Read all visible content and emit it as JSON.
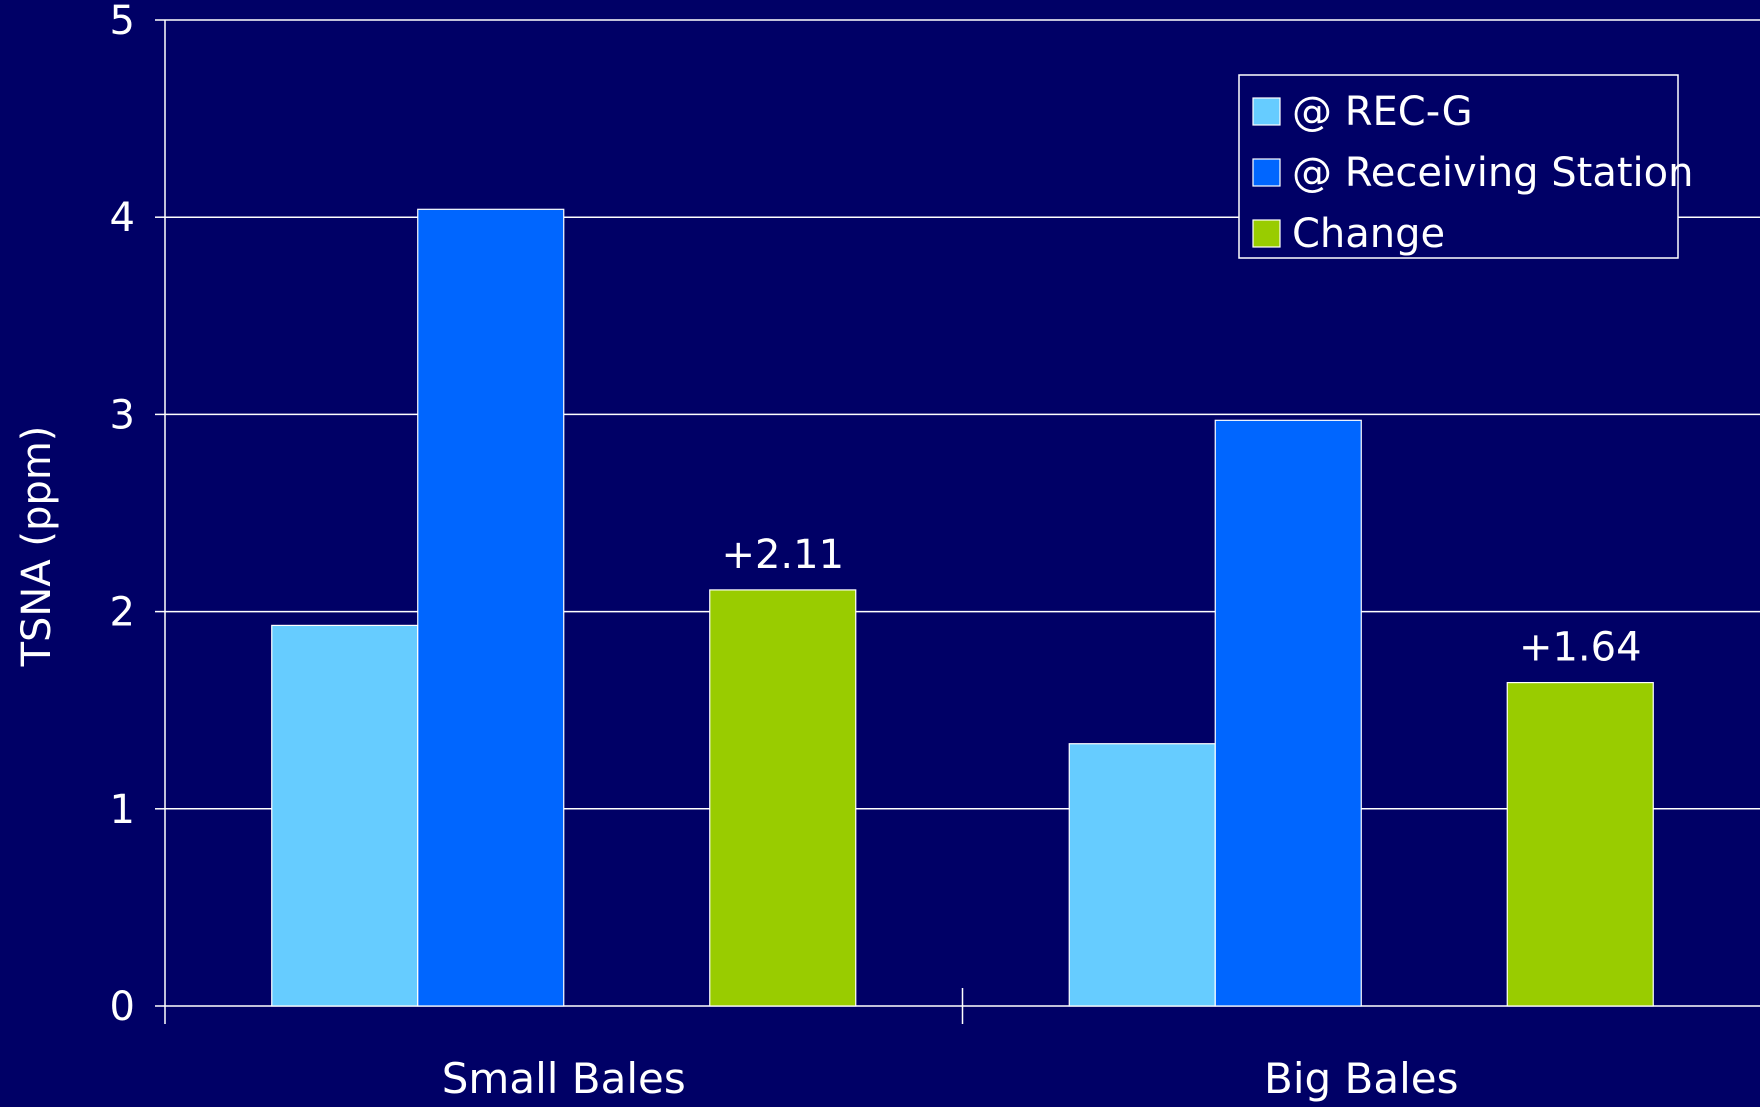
{
  "chart_data": {
    "type": "bar",
    "title": "",
    "xlabel": "",
    "ylabel": "TSNA (ppm)",
    "ylim": [
      0,
      5
    ],
    "yticks": [
      0,
      1,
      2,
      3,
      4,
      5
    ],
    "grid": true,
    "legend_position": "top-right",
    "categories": [
      "Small Bales",
      "Big Bales"
    ],
    "series": [
      {
        "name": "@ REC-G",
        "color": "#66ccff",
        "values": [
          1.93,
          1.33
        ]
      },
      {
        "name": "@ Receiving Station",
        "color": "#0066ff",
        "values": [
          4.04,
          2.97
        ]
      },
      {
        "name": "Change",
        "color": "#99cc00",
        "values": [
          2.11,
          1.64
        ],
        "labels": [
          "+2.11",
          "+1.64"
        ]
      }
    ]
  },
  "colors": {
    "background": "#000066",
    "grid": "#ffffff",
    "text": "#ffffff"
  }
}
